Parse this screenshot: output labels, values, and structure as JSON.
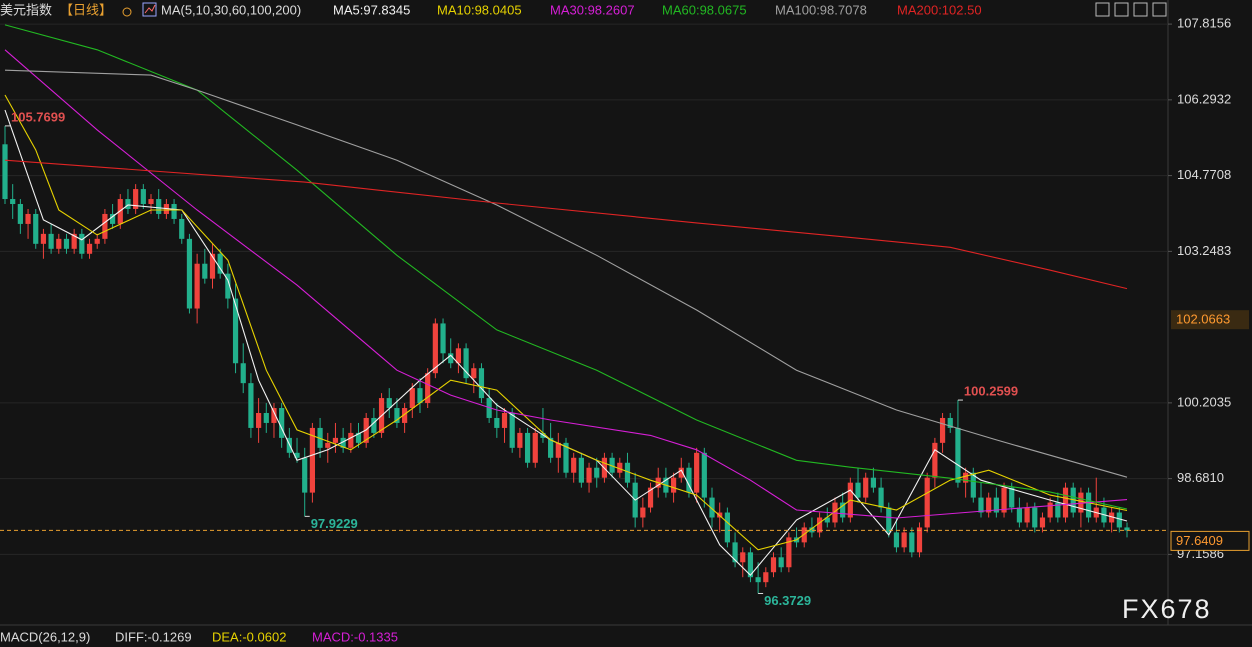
{
  "header": {
    "title": "美元指数",
    "period": "【日线】",
    "ma_params": "MA(5,10,30,60,100,200)"
  },
  "chart_data": {
    "type": "candlestick",
    "ylim": [
      95.84,
      108.3
    ],
    "yticks": [
      107.8156,
      106.2932,
      104.7708,
      103.2483,
      100.2035,
      {
        "value": 98.681,
        "label": "98.6810"
      },
      97.1586
    ],
    "grid": true,
    "up_color": "#f0433d",
    "down_color": "#22b08c",
    "highlight_price": 102.0663,
    "last_price": 97.6409,
    "annotations": [
      105.7699,
      97.9229,
      96.3729,
      100.2599
    ],
    "candles": [
      [
        105.4,
        105.7699,
        104.2,
        104.3
      ],
      [
        104.3,
        104.6,
        103.9,
        104.2
      ],
      [
        104.2,
        104.3,
        103.6,
        103.8
      ],
      [
        103.8,
        104.1,
        103.5,
        104.0
      ],
      [
        104.0,
        104.1,
        103.3,
        103.4
      ],
      [
        103.4,
        103.7,
        103.1,
        103.6
      ],
      [
        103.6,
        103.8,
        103.2,
        103.3
      ],
      [
        103.3,
        103.6,
        103.2,
        103.5
      ],
      [
        103.5,
        103.6,
        103.2,
        103.3
      ],
      [
        103.3,
        103.7,
        103.2,
        103.6
      ],
      [
        103.6,
        103.7,
        103.1,
        103.2
      ],
      [
        103.2,
        103.5,
        103.1,
        103.4
      ],
      [
        103.4,
        103.6,
        103.3,
        103.5
      ],
      [
        103.5,
        104.1,
        103.4,
        104.0
      ],
      [
        104.0,
        104.2,
        103.7,
        103.8
      ],
      [
        103.8,
        104.4,
        103.7,
        104.3
      ],
      [
        104.3,
        104.5,
        104.0,
        104.1
      ],
      [
        104.1,
        104.6,
        104.0,
        104.5
      ],
      [
        104.5,
        104.6,
        104.1,
        104.2
      ],
      [
        104.2,
        104.4,
        104.0,
        104.3
      ],
      [
        104.3,
        104.5,
        103.9,
        104.0
      ],
      [
        104.0,
        104.3,
        103.9,
        104.2
      ],
      [
        104.2,
        104.3,
        103.8,
        103.9
      ],
      [
        103.9,
        104.0,
        103.4,
        103.5
      ],
      [
        103.5,
        103.6,
        102.0,
        102.1
      ],
      [
        102.1,
        103.2,
        101.8,
        103.0
      ],
      [
        103.0,
        103.3,
        102.6,
        102.7
      ],
      [
        102.7,
        103.4,
        102.5,
        103.2
      ],
      [
        103.2,
        103.3,
        102.7,
        102.8
      ],
      [
        102.8,
        103.0,
        102.1,
        102.3
      ],
      [
        102.3,
        102.6,
        100.8,
        101.0
      ],
      [
        101.0,
        101.4,
        100.4,
        100.6
      ],
      [
        100.6,
        100.8,
        99.5,
        99.7
      ],
      [
        99.7,
        100.3,
        99.4,
        100.0
      ],
      [
        100.0,
        100.2,
        99.6,
        99.8
      ],
      [
        99.8,
        100.2,
        99.5,
        100.1
      ],
      [
        100.1,
        100.2,
        99.3,
        99.5
      ],
      [
        99.5,
        99.7,
        99.1,
        99.2
      ],
      [
        99.2,
        99.5,
        99.0,
        99.1
      ],
      [
        99.1,
        99.3,
        97.9229,
        98.4
      ],
      [
        98.4,
        99.8,
        98.2,
        99.7
      ],
      [
        99.7,
        99.9,
        99.1,
        99.3
      ],
      [
        99.3,
        99.6,
        99.0,
        99.4
      ],
      [
        99.4,
        99.8,
        99.2,
        99.5
      ],
      [
        99.5,
        99.7,
        99.2,
        99.3
      ],
      [
        99.3,
        99.8,
        99.2,
        99.6
      ],
      [
        99.6,
        99.8,
        99.3,
        99.4
      ],
      [
        99.4,
        100.0,
        99.3,
        99.9
      ],
      [
        99.9,
        100.1,
        99.5,
        99.6
      ],
      [
        99.6,
        100.4,
        99.5,
        100.3
      ],
      [
        100.3,
        100.5,
        99.9,
        100.1
      ],
      [
        100.1,
        100.3,
        99.7,
        99.8
      ],
      [
        99.8,
        100.2,
        99.6,
        100.1
      ],
      [
        100.1,
        100.6,
        99.9,
        100.5
      ],
      [
        100.5,
        100.7,
        100.0,
        100.2
      ],
      [
        100.2,
        100.9,
        100.1,
        100.8
      ],
      [
        100.8,
        101.9,
        100.7,
        101.8
      ],
      [
        101.8,
        101.9,
        101.0,
        101.2
      ],
      [
        101.2,
        101.5,
        100.9,
        101.0
      ],
      [
        101.0,
        101.4,
        100.8,
        101.3
      ],
      [
        101.3,
        101.4,
        100.6,
        100.7
      ],
      [
        100.7,
        101.0,
        100.4,
        100.9
      ],
      [
        100.9,
        101.0,
        100.2,
        100.3
      ],
      [
        100.3,
        100.5,
        99.8,
        99.9
      ],
      [
        99.9,
        100.2,
        99.5,
        99.7
      ],
      [
        99.7,
        100.1,
        99.4,
        100.0
      ],
      [
        100.0,
        100.1,
        99.2,
        99.3
      ],
      [
        99.3,
        99.7,
        99.1,
        99.6
      ],
      [
        99.6,
        99.7,
        98.9,
        99.0
      ],
      [
        99.0,
        99.7,
        98.9,
        99.6
      ],
      [
        99.6,
        100.1,
        99.4,
        99.5
      ],
      [
        99.5,
        99.8,
        99.0,
        99.1
      ],
      [
        99.1,
        99.6,
        98.8,
        99.4
      ],
      [
        99.4,
        99.5,
        98.7,
        98.8
      ],
      [
        98.8,
        99.2,
        98.6,
        99.1
      ],
      [
        99.1,
        99.2,
        98.5,
        98.6
      ],
      [
        98.6,
        99.0,
        98.4,
        98.9
      ],
      [
        98.9,
        99.1,
        98.5,
        98.7
      ],
      [
        98.7,
        99.2,
        98.6,
        99.1
      ],
      [
        99.1,
        99.2,
        98.7,
        98.8
      ],
      [
        98.8,
        99.1,
        98.7,
        99.0
      ],
      [
        99.0,
        99.2,
        98.5,
        98.6
      ],
      [
        98.6,
        98.8,
        97.7,
        97.9
      ],
      [
        97.9,
        98.3,
        97.7,
        98.1
      ],
      [
        98.1,
        98.6,
        98.0,
        98.5
      ],
      [
        98.5,
        98.9,
        98.3,
        98.7
      ],
      [
        98.7,
        98.9,
        98.3,
        98.4
      ],
      [
        98.4,
        98.8,
        98.2,
        98.7
      ],
      [
        98.7,
        99.1,
        98.6,
        98.9
      ],
      [
        98.9,
        99.0,
        98.3,
        98.4
      ],
      [
        98.4,
        99.3,
        98.2,
        99.2
      ],
      [
        99.2,
        99.3,
        98.1,
        98.3
      ],
      [
        98.3,
        98.5,
        97.7,
        97.9
      ],
      [
        97.9,
        98.2,
        97.6,
        98.0
      ],
      [
        98.0,
        98.1,
        97.3,
        97.4
      ],
      [
        97.4,
        97.6,
        96.9,
        97.0
      ],
      [
        97.0,
        97.3,
        96.7,
        97.2
      ],
      [
        97.2,
        97.3,
        96.6,
        96.7
      ],
      [
        96.7,
        97.0,
        96.3729,
        96.6
      ],
      [
        96.6,
        96.9,
        96.5,
        96.8
      ],
      [
        96.8,
        97.2,
        96.7,
        97.1
      ],
      [
        97.1,
        97.3,
        96.8,
        96.9
      ],
      [
        96.9,
        97.6,
        96.8,
        97.5
      ],
      [
        97.5,
        97.7,
        97.3,
        97.4
      ],
      [
        97.4,
        97.8,
        97.3,
        97.7
      ],
      [
        97.7,
        97.9,
        97.5,
        97.6
      ],
      [
        97.6,
        98.0,
        97.5,
        97.9
      ],
      [
        97.9,
        98.1,
        97.7,
        97.8
      ],
      [
        97.8,
        98.3,
        97.7,
        98.2
      ],
      [
        98.2,
        98.4,
        97.8,
        97.9
      ],
      [
        97.9,
        98.7,
        97.8,
        98.6
      ],
      [
        98.6,
        98.9,
        98.2,
        98.3
      ],
      [
        98.3,
        98.8,
        98.2,
        98.7
      ],
      [
        98.7,
        98.9,
        98.4,
        98.5
      ],
      [
        98.5,
        98.7,
        98.0,
        98.1
      ],
      [
        98.1,
        98.2,
        97.5,
        97.6
      ],
      [
        97.6,
        97.9,
        97.2,
        97.3
      ],
      [
        97.3,
        97.7,
        97.2,
        97.6
      ],
      [
        97.6,
        97.7,
        97.1,
        97.2
      ],
      [
        97.2,
        97.8,
        97.1,
        97.7
      ],
      [
        97.7,
        98.8,
        97.6,
        98.7
      ],
      [
        98.7,
        99.5,
        98.5,
        99.4
      ],
      [
        99.4,
        100.0,
        99.2,
        99.9
      ],
      [
        99.9,
        100.0,
        99.6,
        99.7
      ],
      [
        99.7,
        100.2599,
        98.5,
        98.6
      ],
      [
        98.6,
        98.9,
        98.3,
        98.8
      ],
      [
        98.8,
        98.9,
        98.2,
        98.3
      ],
      [
        98.3,
        98.6,
        97.9,
        98.0
      ],
      [
        98.0,
        98.4,
        97.9,
        98.3
      ],
      [
        98.3,
        98.5,
        97.9,
        98.0
      ],
      [
        98.0,
        98.6,
        97.9,
        98.5
      ],
      [
        98.5,
        98.6,
        98.0,
        98.1
      ],
      [
        98.1,
        98.3,
        97.7,
        97.8
      ],
      [
        97.8,
        98.2,
        97.7,
        98.1
      ],
      [
        98.1,
        98.2,
        97.6,
        97.7
      ],
      [
        97.7,
        98.0,
        97.6,
        97.9
      ],
      [
        97.9,
        98.3,
        97.8,
        98.2
      ],
      [
        98.2,
        98.4,
        97.8,
        97.9
      ],
      [
        97.9,
        98.6,
        97.8,
        98.5
      ],
      [
        98.5,
        98.6,
        97.9,
        98.0
      ],
      [
        98.0,
        98.5,
        97.7,
        98.4
      ],
      [
        98.4,
        98.5,
        97.8,
        97.9
      ],
      [
        97.9,
        98.7,
        97.8,
        98.1
      ],
      [
        98.1,
        98.3,
        97.7,
        97.8
      ],
      [
        97.8,
        98.1,
        97.6,
        98.0
      ],
      [
        98.0,
        98.1,
        97.6,
        97.7
      ],
      [
        97.7,
        97.8,
        97.5,
        97.64
      ]
    ],
    "series": [
      {
        "name": "MA5:97.8345",
        "color": "#f2f2f2",
        "x": [
          0,
          5,
          10,
          16,
          23,
          29,
          33,
          38,
          42,
          47,
          54,
          58,
          64,
          71,
          77,
          82,
          88,
          93,
          97,
          103,
          110,
          115,
          121,
          127,
          136,
          146
        ],
        "values": [
          106.09,
          103.88,
          103.48,
          104.18,
          104.08,
          102.67,
          100.66,
          99.05,
          99.26,
          99.66,
          100.66,
          101.16,
          100.16,
          99.46,
          99.05,
          98.25,
          98.85,
          97.35,
          96.74,
          97.85,
          98.45,
          97.55,
          99.26,
          98.65,
          98.25,
          97.83
        ]
      },
      {
        "name": "MA10:98.0405",
        "color": "#e6d200",
        "x": [
          0,
          4,
          7,
          12,
          19,
          23,
          29,
          34,
          38,
          45,
          51,
          58,
          64,
          71,
          77,
          84,
          90,
          98,
          103,
          110,
          116,
          123,
          128,
          136,
          146
        ],
        "values": [
          106.39,
          105.29,
          104.08,
          103.58,
          104.08,
          104.08,
          103.07,
          100.86,
          99.66,
          99.26,
          99.86,
          100.66,
          100.46,
          99.46,
          99.05,
          98.65,
          98.35,
          97.25,
          97.45,
          98.25,
          98.05,
          98.65,
          98.85,
          98.35,
          98.04
        ]
      },
      {
        "name": "MA30:98.2607",
        "color": "#d61fd6",
        "x": [
          0,
          12,
          25,
          38,
          51,
          58,
          64,
          71,
          84,
          90,
          97,
          103,
          116,
          129,
          146
        ],
        "values": [
          107.3,
          105.69,
          104.08,
          102.57,
          100.86,
          100.36,
          100.06,
          99.86,
          99.55,
          99.26,
          98.65,
          98.05,
          97.89,
          98.05,
          98.26
        ]
      },
      {
        "name": "MA60:98.0675",
        "color": "#22b822",
        "x": [
          0,
          12,
          25,
          38,
          51,
          64,
          77,
          90,
          103,
          110,
          123,
          136,
          146
        ],
        "values": [
          107.8,
          107.3,
          106.49,
          104.88,
          103.17,
          101.67,
          100.86,
          99.86,
          99.05,
          98.91,
          98.69,
          98.41,
          98.07
        ]
      },
      {
        "name": "MA100:98.7078",
        "color": "#a0a0a0",
        "x": [
          0,
          19,
          25,
          38,
          51,
          64,
          77,
          90,
          103,
          116,
          129,
          146
        ],
        "values": [
          106.89,
          106.79,
          106.49,
          105.79,
          105.08,
          104.18,
          103.17,
          102.07,
          100.86,
          100.06,
          99.46,
          98.71
        ]
      },
      {
        "name": "MA200:102.50",
        "color": "#e02424",
        "x": [
          0,
          39,
          64,
          90,
          110,
          123,
          136,
          146
        ],
        "values": [
          105.08,
          104.64,
          104.22,
          103.82,
          103.53,
          103.33,
          102.87,
          102.5
        ]
      }
    ]
  },
  "footer": {
    "macd": "MACD(26,12,9)",
    "diff": "DIFF:-0.1269",
    "dea": "DEA:-0.0602",
    "macd_value": "MACD:-0.1335"
  },
  "watermark": "FX678"
}
